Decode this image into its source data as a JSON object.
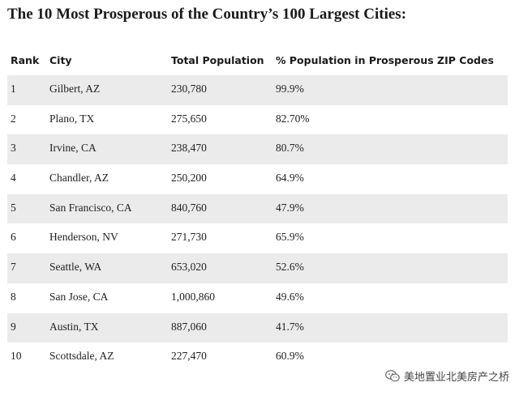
{
  "title": "The 10 Most Prosperous of the Country’s 100 Largest Cities:",
  "columns": {
    "rank": "Rank",
    "city": "City",
    "population": "Total Population",
    "percent": "% Population in Prosperous ZIP Codes"
  },
  "rows": [
    {
      "rank": "1",
      "city": "Gilbert, AZ",
      "population": "230,780",
      "percent": "99.9%"
    },
    {
      "rank": "2",
      "city": "Plano, TX",
      "population": "275,650",
      "percent": "82.70%"
    },
    {
      "rank": "3",
      "city": "Irvine, CA",
      "population": "238,470",
      "percent": "80.7%"
    },
    {
      "rank": "4",
      "city": "Chandler, AZ",
      "population": "250,200",
      "percent": "64.9%"
    },
    {
      "rank": "5",
      "city": "San Francisco, CA",
      "population": "840,760",
      "percent": "47.9%"
    },
    {
      "rank": "6",
      "city": "Henderson, NV",
      "population": "271,730",
      "percent": "65.9%"
    },
    {
      "rank": "7",
      "city": "Seattle, WA",
      "population": "653,020",
      "percent": "52.6%"
    },
    {
      "rank": "8",
      "city": "San Jose, CA",
      "population": "1,000,860",
      "percent": "49.6%"
    },
    {
      "rank": "9",
      "city": "Austin, TX",
      "population": "887,060",
      "percent": "41.7%"
    },
    {
      "rank": "10",
      "city": "Scottsdale, AZ",
      "population": "227,470",
      "percent": "60.9%"
    }
  ],
  "watermark": {
    "text": "美地置业北美房产之桥",
    "icon": "wechat-icon"
  },
  "colors": {
    "shaded_row": "#ebebeb",
    "text": "#1a1a1a"
  }
}
